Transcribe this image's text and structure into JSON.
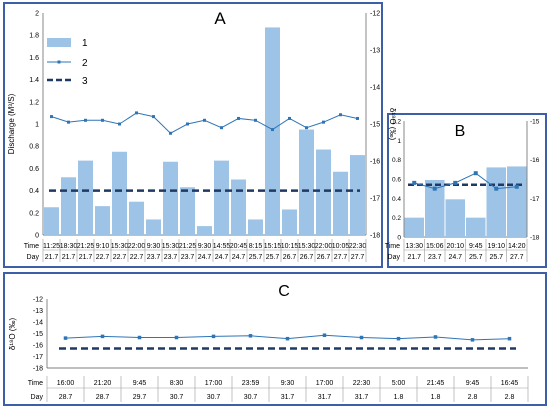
{
  "colors": {
    "bar": "#9dc3e6",
    "bar_edge": "#7fb0dc",
    "line": "#2e75b6",
    "dash": "#1f3864",
    "frame": "#3d5fa8",
    "cell_line": "#9a9a9a"
  },
  "row_labels": {
    "time": "Time",
    "day": "Day"
  },
  "chart_data": [
    {
      "panel": "A",
      "type": "bar",
      "ylabel_left": "Discharge (M³/S)",
      "ylabel_right": "δ¹⁸O (‰)",
      "ylim_left": [
        0,
        2
      ],
      "yticks_left": [
        "0",
        "0.2",
        "0.4",
        "0.6",
        "0.8",
        "1",
        "1.2",
        "1.4",
        "1.6",
        "1.8",
        "2"
      ],
      "ylim_right": [
        -18,
        -12
      ],
      "yticks_right": [
        "-12",
        "-13",
        "-14",
        "-15",
        "-16",
        "-17",
        "-18"
      ],
      "legend": {
        "position": "top-center",
        "entries": [
          "1",
          "2",
          "3"
        ]
      },
      "times": [
        "11:25",
        "18:30",
        "21:25",
        "9:10",
        "15:30",
        "22:00",
        "9:30",
        "15:30",
        "21:25",
        "9:30",
        "14:55",
        "20:45",
        "8:15",
        "15:15",
        "10:15",
        "15:30",
        "22:00",
        "10:05",
        "22:30"
      ],
      "days": [
        "21.7",
        "21.7",
        "21.7",
        "22.7",
        "22.7",
        "22.7",
        "23.7",
        "23.7",
        "23.7",
        "24.7",
        "24.7",
        "24.7",
        "25.7",
        "25.7",
        "26.7",
        "26.7",
        "26.7",
        "27.7",
        "27.7"
      ],
      "series": [
        {
          "type": "bar",
          "axis": "left",
          "values": [
            0.25,
            0.52,
            0.67,
            0.26,
            0.75,
            0.3,
            0.14,
            0.66,
            0.43,
            0.08,
            0.67,
            0.5,
            0.14,
            1.87,
            0.23,
            0.95,
            0.77,
            0.57,
            0.72
          ]
        },
        {
          "type": "line",
          "axis": "right",
          "values": [
            -14.8,
            -14.95,
            -14.9,
            -14.9,
            -15.0,
            -14.7,
            -14.8,
            -15.25,
            -15.0,
            -14.9,
            -15.1,
            -14.85,
            -14.9,
            -15.15,
            -14.85,
            -15.1,
            -14.95,
            -14.75,
            -14.85
          ]
        },
        {
          "type": "dashed",
          "axis": "right",
          "value": -16.8
        }
      ]
    },
    {
      "panel": "B",
      "type": "bar",
      "ylim_left": [
        0,
        1.2
      ],
      "yticks_left": [
        "0",
        "0.2",
        "0.4",
        "0.6",
        "0.8",
        "1",
        "1.2"
      ],
      "ylim_right": [
        -18,
        -15
      ],
      "yticks_right": [
        "-15",
        "-16",
        "-17",
        "-18"
      ],
      "times": [
        "13:30",
        "15:06",
        "20:10",
        "9:45",
        "19:10",
        "14:20"
      ],
      "days": [
        "21.7",
        "23.7",
        "24.7",
        "25.7",
        "25.7",
        "27.7"
      ],
      "series": [
        {
          "type": "bar",
          "axis": "left",
          "values": [
            0.2,
            0.59,
            0.39,
            0.2,
            0.72,
            0.73
          ]
        },
        {
          "type": "line",
          "axis": "right",
          "values": [
            -16.6,
            -16.75,
            -16.6,
            -16.35,
            -16.75,
            -16.7
          ]
        },
        {
          "type": "dashed",
          "axis": "right",
          "value": -16.65
        }
      ]
    },
    {
      "panel": "C",
      "type": "line",
      "ylabel": "δ¹⁸O (‰)",
      "ylim": [
        -18,
        -12
      ],
      "yticks": [
        "-12",
        "-13",
        "-14",
        "-15",
        "-16",
        "-17",
        "-18"
      ],
      "times": [
        "16:00",
        "21:20",
        "9:45",
        "8:30",
        "17:00",
        "23:59",
        "9:30",
        "17:00",
        "22:30",
        "5:00",
        "21:45",
        "9:45",
        "16:45"
      ],
      "days": [
        "28.7",
        "28.7",
        "29.7",
        "30.7",
        "30.7",
        "30.7",
        "31.7",
        "31.7",
        "31.7",
        "1.8",
        "1.8",
        "2.8",
        "2.8"
      ],
      "series": [
        {
          "type": "line",
          "values": [
            -15.4,
            -15.25,
            -15.35,
            -15.35,
            -15.25,
            -15.2,
            -15.45,
            -15.15,
            -15.35,
            -15.45,
            -15.3,
            -15.55,
            -15.45
          ]
        },
        {
          "type": "dashed",
          "value": -16.3
        }
      ]
    }
  ],
  "panels": {
    "A": {
      "label": "A"
    },
    "B": {
      "label": "B"
    },
    "C": {
      "label": "C"
    }
  }
}
